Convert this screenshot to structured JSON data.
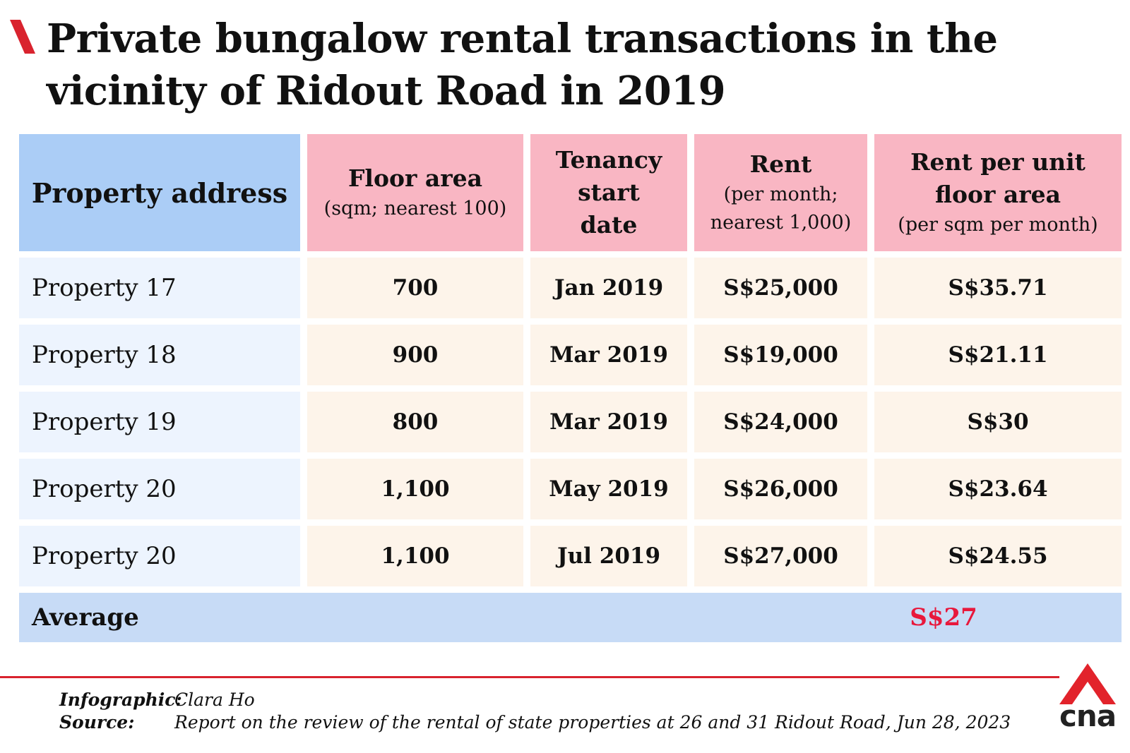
{
  "title": "Private bungalow rental transactions in the vicinity of Ridout Road in 2019",
  "colors": {
    "accent": "#d9232e",
    "header_blue": "#abcdf6",
    "header_pink": "#f9b6c3",
    "address_cell": "#edf4fe",
    "value_cell": "#fdf4ea",
    "average_row": "#c7dbf6",
    "average_value": "#e8183c"
  },
  "table": {
    "headers": [
      {
        "main": "Property address",
        "sub": ""
      },
      {
        "main": "Floor area",
        "sub": "(sqm; nearest 100)"
      },
      {
        "main": "Tenancy start date",
        "sub": ""
      },
      {
        "main": "Rent",
        "sub": "(per month; nearest 1,000)"
      },
      {
        "main": "Rent per unit floor area",
        "sub": "(per sqm per month)"
      }
    ],
    "rows": [
      {
        "address": "Property 17",
        "floor_area": "700",
        "start_date": "Jan 2019",
        "rent": "S$25,000",
        "rent_per_unit": "S$35.71"
      },
      {
        "address": "Property 18",
        "floor_area": "900",
        "start_date": "Mar 2019",
        "rent": "S$19,000",
        "rent_per_unit": "S$21.11"
      },
      {
        "address": "Property 19",
        "floor_area": "800",
        "start_date": "Mar 2019",
        "rent": "S$24,000",
        "rent_per_unit": "S$30"
      },
      {
        "address": "Property 20",
        "floor_area": "1,100",
        "start_date": "May 2019",
        "rent": "S$26,000",
        "rent_per_unit": "S$23.64"
      },
      {
        "address": "Property 20",
        "floor_area": "1,100",
        "start_date": "Jul 2019",
        "rent": "S$27,000",
        "rent_per_unit": "S$24.55"
      }
    ],
    "average": {
      "label": "Average",
      "value": "S$27"
    }
  },
  "credits": {
    "infographic_label": "Infographic:",
    "infographic_value": "Clara Ho",
    "source_label": "Source:",
    "source_value": "Report on the review of the rental of state properties at 26 and 31 Ridout Road, Jun 28, 2023"
  },
  "logo": {
    "text": "cna",
    "icon": "cna-logo-icon"
  }
}
